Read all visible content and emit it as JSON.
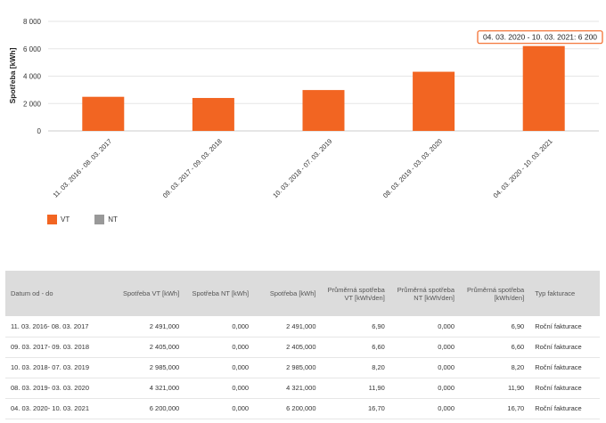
{
  "chart_data": {
    "type": "bar",
    "ylabel": "Spotřeba [kWh]",
    "ylim": [
      0,
      8000
    ],
    "yticks": [
      "0",
      "2 000",
      "4 000",
      "6 000",
      "8 000"
    ],
    "categories": [
      "11. 03. 2016 - 08. 03. 2017",
      "09. 03. 2017 - 09. 03. 2018",
      "10. 03. 2018 - 07. 03. 2019",
      "08. 03. 2019 - 03. 03. 2020",
      "04. 03. 2020 - 10. 03. 2021"
    ],
    "series": [
      {
        "name": "VT",
        "color": "#f26522",
        "values": [
          2491,
          2405,
          2985,
          4321,
          6200
        ]
      },
      {
        "name": "NT",
        "color": "#999999",
        "values": [
          0,
          0,
          0,
          0,
          0
        ]
      }
    ],
    "tooltip": "04. 03. 2020 - 10. 03. 2021: 6 200",
    "tooltip_index": 4,
    "grid": true,
    "legend_position": "bottom-left"
  },
  "legend": {
    "vt_label": "VT",
    "vt_color": "#f26522",
    "nt_label": "NT",
    "nt_color": "#999999"
  },
  "table": {
    "headers": [
      "Datum od - do",
      "Spotřeba VT [kWh]",
      "Spotřeba NT [kWh]",
      "Spotřeba [kWh]",
      "Průměrná spotřeba VT [kWh/den]",
      "Průměrná spotřeba NT [kWh/den]",
      "Průměrná spotřeba [kWh/den]",
      "Typ fakturace"
    ],
    "rows": [
      [
        "11. 03. 2016- 08. 03. 2017",
        "2 491,000",
        "0,000",
        "2 491,000",
        "6,90",
        "0,000",
        "6,90",
        "Roční fakturace"
      ],
      [
        "09. 03. 2017- 09. 03. 2018",
        "2 405,000",
        "0,000",
        "2 405,000",
        "6,60",
        "0,000",
        "6,60",
        "Roční fakturace"
      ],
      [
        "10. 03. 2018- 07. 03. 2019",
        "2 985,000",
        "0,000",
        "2 985,000",
        "8,20",
        "0,000",
        "8,20",
        "Roční fakturace"
      ],
      [
        "08. 03. 2019- 03. 03. 2020",
        "4 321,000",
        "0,000",
        "4 321,000",
        "11,90",
        "0,000",
        "11,90",
        "Roční fakturace"
      ],
      [
        "04. 03. 2020- 10. 03. 2021",
        "6 200,000",
        "0,000",
        "6 200,000",
        "16,70",
        "0,000",
        "16,70",
        "Roční fakturace"
      ]
    ]
  }
}
